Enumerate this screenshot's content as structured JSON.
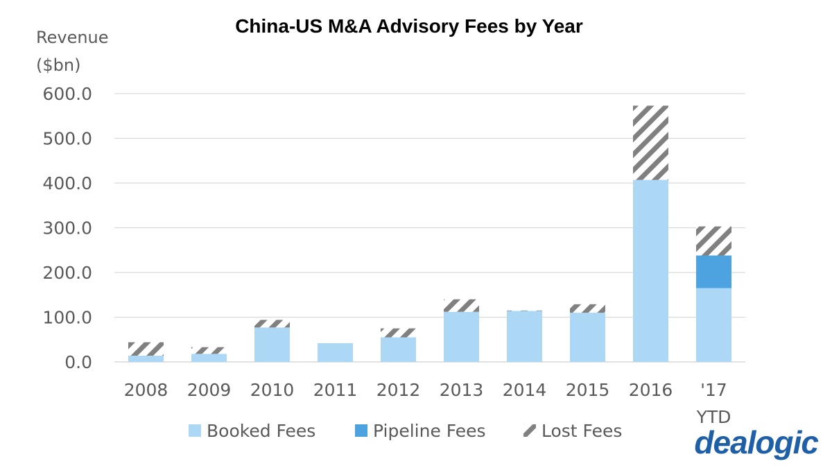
{
  "brand": {
    "logo_text": "dealogic",
    "logo_color": "#1f5fa8"
  },
  "colors": {
    "booked": "#acd8f6",
    "pipeline": "#4da3df",
    "lost_stripe": "#808080",
    "grid": "#d9d9d9"
  },
  "chart_data": {
    "type": "bar",
    "stacked": true,
    "title": "China-US M&A Advisory Fees by Year",
    "ylabel_lines": [
      "Revenue",
      "($bn)"
    ],
    "xlabel": "",
    "ylim": [
      0,
      600
    ],
    "yticks": [
      "0.0",
      "100.0",
      "200.0",
      "300.0",
      "400.0",
      "500.0",
      "600.0"
    ],
    "ytick_values": [
      0,
      100,
      200,
      300,
      400,
      500,
      600
    ],
    "grid": true,
    "legend_position": "bottom",
    "categories": [
      [
        "2008"
      ],
      [
        "2009"
      ],
      [
        "2010"
      ],
      [
        "2011"
      ],
      [
        "2012"
      ],
      [
        "2013"
      ],
      [
        "2014"
      ],
      [
        "2015"
      ],
      [
        "2016"
      ],
      [
        "'17",
        "YTD"
      ]
    ],
    "series": [
      {
        "name": "Booked Fees",
        "key": "booked",
        "values": [
          14,
          18,
          77,
          42,
          55,
          112,
          114,
          110,
          407,
          165
        ]
      },
      {
        "name": "Pipeline Fees",
        "key": "pipeline",
        "values": [
          0,
          0,
          0,
          0,
          0,
          0,
          0,
          0,
          0,
          73
        ]
      },
      {
        "name": "Lost Fees",
        "key": "lost",
        "values": [
          30,
          15,
          17,
          0,
          20,
          28,
          1,
          19,
          166,
          65
        ]
      }
    ]
  }
}
